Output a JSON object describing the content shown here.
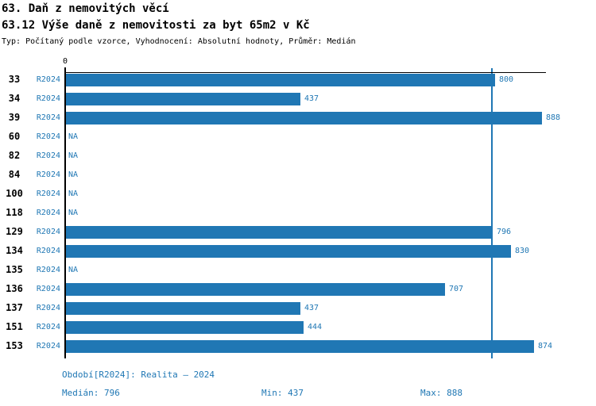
{
  "header": {
    "title": "63. Daň z nemovitých věcí",
    "subtitle": "63.12 Výše daně z nemovitosti za byt 65m2 v Kč",
    "meta": "Typ: Počítaný podle vzorce, Vyhodnocení: Absolutní hodnoty, Průměr: Medián"
  },
  "chart_data": {
    "type": "bar",
    "orientation": "horizontal",
    "title": "63.12 Výše daně z nemovitosti za byt 65m2 v Kč",
    "series_label": "R2024",
    "x_zero_label": "0",
    "xlim": [
      0,
      897
    ],
    "categories": [
      "33",
      "34",
      "39",
      "60",
      "82",
      "84",
      "100",
      "118",
      "129",
      "134",
      "135",
      "136",
      "137",
      "151",
      "153"
    ],
    "values": [
      800,
      437,
      888,
      null,
      null,
      null,
      null,
      null,
      796,
      830,
      null,
      707,
      437,
      444,
      874
    ],
    "na_text": "NA",
    "median_value": 796,
    "min_value": 437,
    "max_value": 888,
    "bar_color": "#2077b4",
    "median_line_color": "#1f77b4",
    "label_color": "#1f77b4",
    "axis_color": "#000000",
    "grid": false,
    "legend_position": "none"
  },
  "footer": {
    "period": "Období[R2024]: Realita – 2024",
    "median": "Medián: 796",
    "min": "Min: 437",
    "max": "Max: 888"
  }
}
